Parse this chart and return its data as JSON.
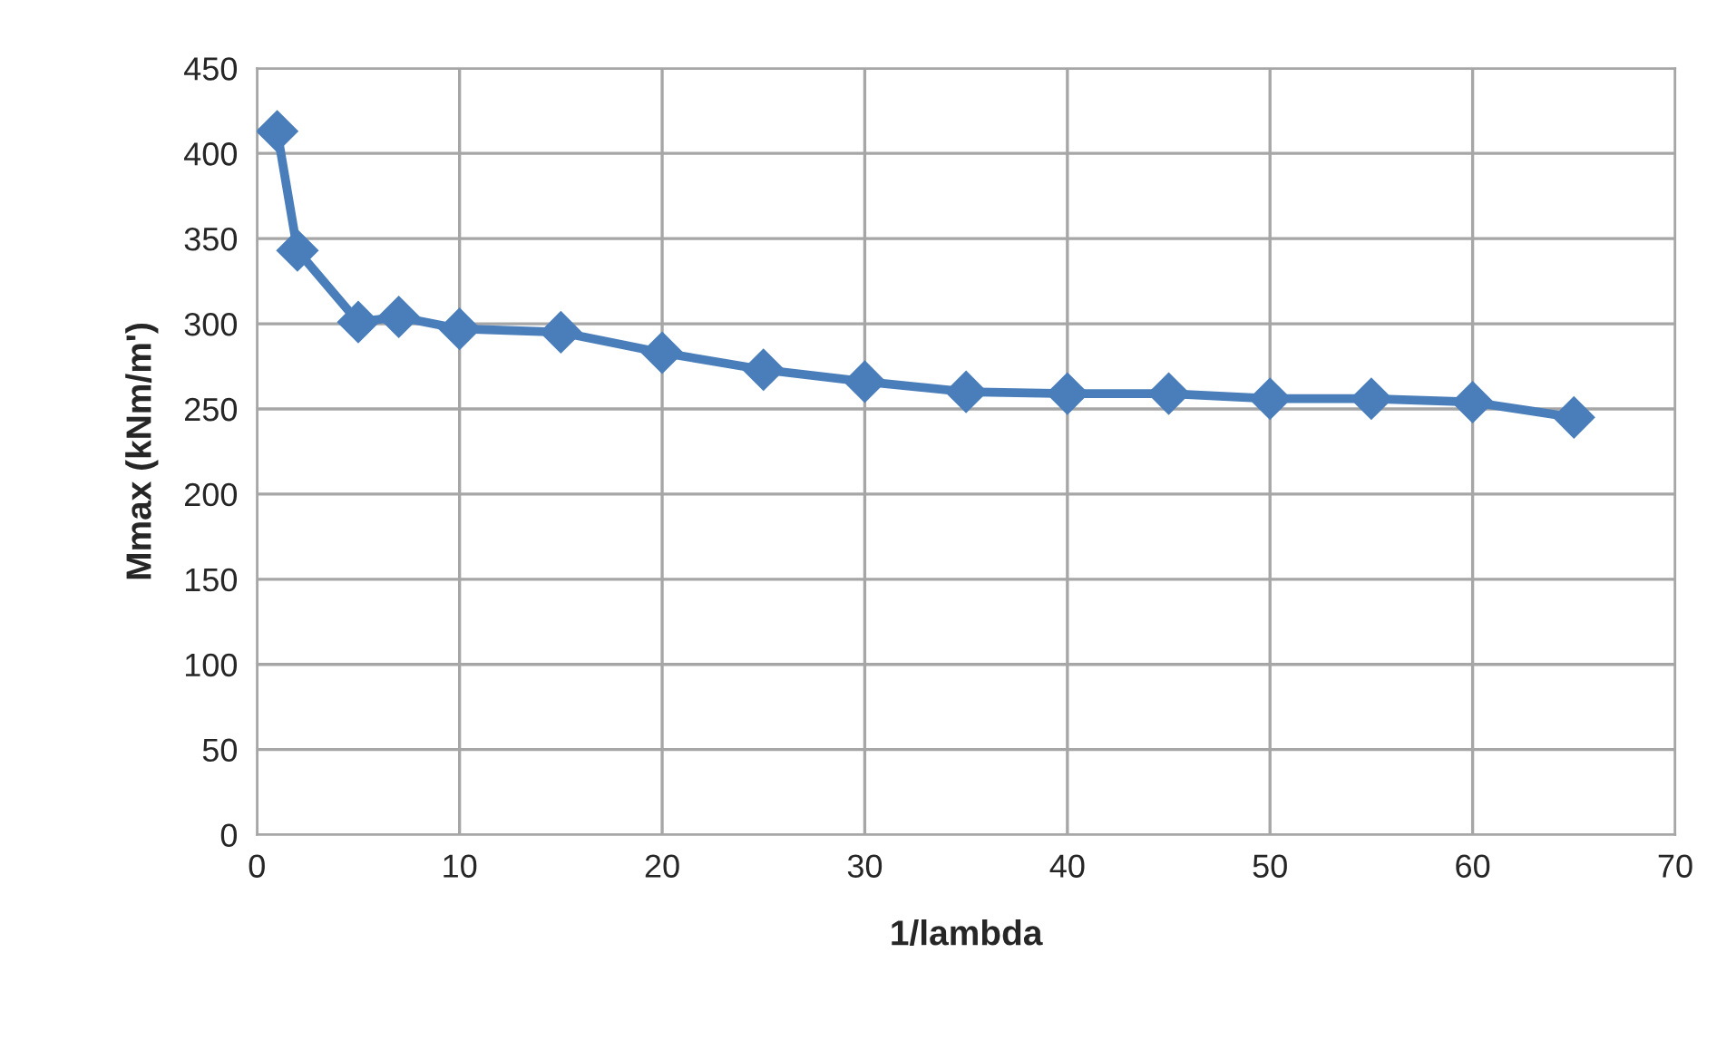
{
  "chart_data": {
    "type": "line",
    "xlabel": "1/lambda",
    "ylabel": "Mmax (kNm/m')",
    "x": [
      1,
      2,
      5,
      7,
      10,
      15,
      20,
      25,
      30,
      35,
      40,
      45,
      50,
      55,
      60,
      65
    ],
    "series": [
      {
        "color": "#4a7ebb",
        "values": [
          413,
          343,
          301,
          304,
          297,
          295,
          283,
          273,
          266,
          260,
          259,
          259,
          256,
          256,
          254,
          245
        ]
      }
    ],
    "xlim": [
      0,
      70
    ],
    "xticks": [
      0,
      10,
      20,
      30,
      40,
      50,
      60,
      70
    ],
    "ylim": [
      0,
      450
    ],
    "yticks": [
      0,
      50,
      100,
      150,
      200,
      250,
      300,
      350,
      400,
      450
    ],
    "grid": true,
    "marker": "diamond",
    "line_style": "solid"
  }
}
